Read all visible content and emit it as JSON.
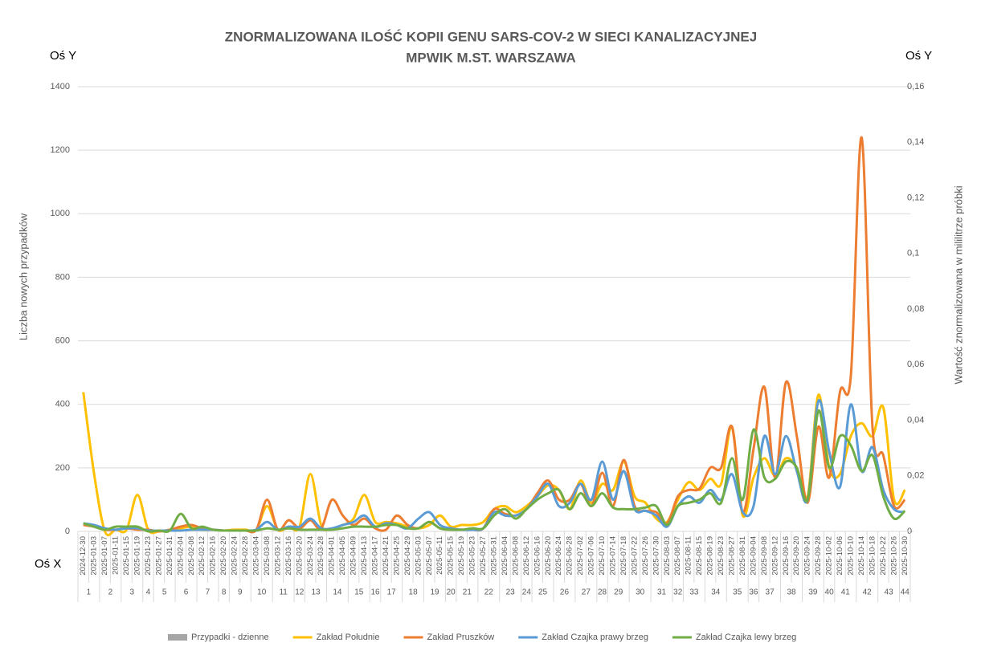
{
  "chart_data": {
    "type": "line",
    "title": [
      "ZNORMALIZOWANA ILOŚĆ KOPII GENU SARS-COV-2 W SIECI KANALIZACYJNEJ",
      "MPWIK M.ST. WARSZAWA"
    ],
    "annotations": [
      "Oś Y",
      "Oś Y",
      "Oś X"
    ],
    "ylabel": "Liczba nowych przypadków",
    "y2label": "Wartość znormalizowana  w mililitrze próbki",
    "x": [
      "2024-12-30",
      "2025-01-03",
      "2025-01-07",
      "2025-01-11",
      "2025-01-15",
      "2025-01-19",
      "2025-01-23",
      "2025-01-27",
      "2025-01-31",
      "2025-02-04",
      "2025-02-08",
      "2025-02-12",
      "2025-02-16",
      "2025-02-20",
      "2025-02-24",
      "2025-02-28",
      "2025-03-04",
      "2025-03-08",
      "2025-03-12",
      "2025-03-16",
      "2025-03-20",
      "2025-03-24",
      "2025-03-28",
      "2025-04-01",
      "2025-04-05",
      "2025-04-09",
      "2025-04-13",
      "2025-04-17",
      "2025-04-21",
      "2025-04-25",
      "2025-04-29",
      "2025-05-03",
      "2025-05-07",
      "2025-05-11",
      "2025-05-15",
      "2025-05-19",
      "2025-05-23",
      "2025-05-27",
      "2025-05-31",
      "2025-06-04",
      "2025-06-08",
      "2025-06-12",
      "2025-06-16",
      "2025-06-20",
      "2025-06-24",
      "2025-06-28",
      "2025-07-02",
      "2025-07-06",
      "2025-07-10",
      "2025-07-14",
      "2025-07-18",
      "2025-07-22",
      "2025-07-26",
      "2025-07-30",
      "2025-08-03",
      "2025-08-07",
      "2025-08-11",
      "2025-08-15",
      "2025-08-19",
      "2025-08-23",
      "2025-08-27",
      "2025-08-31",
      "2025-09-04",
      "2025-09-08",
      "2025-09-12",
      "2025-09-16",
      "2025-09-20",
      "2025-09-24",
      "2025-09-28",
      "2025-10-02",
      "2025-10-06",
      "2025-10-10",
      "2025-10-14",
      "2025-10-18",
      "2025-10-22",
      "2025-10-26",
      "2025-10-30"
    ],
    "x_groups": [
      1,
      2,
      3,
      4,
      5,
      6,
      7,
      8,
      9,
      10,
      11,
      12,
      13,
      14,
      15,
      16,
      17,
      18,
      19,
      20,
      21,
      22,
      23,
      24,
      25,
      26,
      27,
      28,
      29,
      30,
      31,
      32,
      33,
      34,
      35,
      36,
      37,
      38,
      39,
      40,
      41,
      42,
      43,
      44
    ],
    "ylim": [
      0,
      1400
    ],
    "yticks": [
      0,
      200,
      400,
      600,
      800,
      1000,
      1200,
      1400
    ],
    "y2lim": [
      0,
      0.16
    ],
    "y2ticks": [
      0,
      {
        "value": 0.02,
        "label": "0,02"
      },
      {
        "value": 0.04,
        "label": "0,04"
      },
      {
        "value": 0.06,
        "label": "0,06"
      },
      {
        "value": 0.08,
        "label": "0,08"
      },
      {
        "value": 0.1,
        "label": "0,1"
      },
      {
        "value": 0.12,
        "label": "0,12"
      },
      {
        "value": 0.14,
        "label": "0,14"
      },
      {
        "value": 0.16,
        "label": "0,16"
      }
    ],
    "grid": true,
    "legend": "bottom",
    "series": [
      {
        "name": "Przypadki - dzienne",
        "color": "#a5a5a5",
        "axis": "y",
        "values": [
          null,
          null,
          null,
          null,
          null,
          null,
          null,
          null,
          null,
          null,
          null,
          null,
          null,
          null,
          null,
          null,
          null,
          null,
          null,
          null,
          null,
          null,
          null,
          null,
          null,
          null,
          null,
          null,
          null,
          null,
          null,
          null,
          null,
          null,
          null,
          null,
          null,
          null,
          null,
          null,
          null,
          null,
          null,
          null,
          null,
          null,
          null,
          null,
          null,
          null,
          null,
          null,
          null,
          null,
          null,
          null,
          null,
          null,
          null,
          null,
          null,
          null,
          null,
          null,
          null,
          null,
          null,
          null,
          null,
          null,
          null,
          null,
          null,
          null,
          null,
          null,
          null
        ]
      },
      {
        "name": "Zakład Południe",
        "color": "#ffc000",
        "axis": "y2",
        "values": [
          0.0501,
          0.0206,
          0,
          0.0006,
          0.0006,
          0.0131,
          0.0006,
          0,
          0.0006,
          0.0011,
          0.0017,
          0.0006,
          0.0006,
          0.0003,
          0.0006,
          0.0006,
          0.0006,
          0.0091,
          0.0006,
          0.0017,
          0.0017,
          0.0206,
          0.0023,
          0.0011,
          0.0023,
          0.0046,
          0.0131,
          0.0034,
          0.0034,
          0.0029,
          0.0017,
          0.0011,
          0.0023,
          0.0057,
          0.0017,
          0.0023,
          0.0023,
          0.0034,
          0.008,
          0.0091,
          0.0069,
          0.0091,
          0.0126,
          0.0166,
          0.0149,
          0.008,
          0.0183,
          0.0103,
          0.0171,
          0.0149,
          0.0251,
          0.0126,
          0.0103,
          0.0046,
          0.0034,
          0.0114,
          0.0177,
          0.0149,
          0.0189,
          0.0171,
          0.0377,
          0.0057,
          0.0194,
          0.0263,
          0.02,
          0.0263,
          0.0229,
          0.0126,
          0.0491,
          0.0229,
          0.0206,
          0.0343,
          0.0389,
          0.0343,
          0.0446,
          0.0114,
          0.0149
        ]
      },
      {
        "name": "Zakład Pruszków",
        "color": "#ed7d31",
        "axis": "y2",
        "values": [
          0.0023,
          0.0017,
          0.0006,
          0.0006,
          0.0011,
          0.0006,
          0.0006,
          0,
          0.0006,
          0.0017,
          0.0023,
          0.0011,
          0.0006,
          0.0003,
          0.0003,
          0.0003,
          0.0006,
          0.0114,
          0.0006,
          0.004,
          0.0011,
          0.004,
          0.0011,
          0.0114,
          0.0057,
          0.0023,
          0.0046,
          0.0011,
          0.0006,
          0.0057,
          0.0023,
          0.0011,
          0.0034,
          0.0011,
          0.0006,
          0.0006,
          0.0006,
          0.0011,
          0.008,
          0.0063,
          0.0057,
          0.008,
          0.0137,
          0.0183,
          0.0114,
          0.0114,
          0.0171,
          0.0091,
          0.0211,
          0.0091,
          0.0257,
          0.0091,
          0.0074,
          0.0069,
          0.0029,
          0.0126,
          0.0149,
          0.0154,
          0.0229,
          0.0229,
          0.0377,
          0.0069,
          0.0297,
          0.052,
          0.0194,
          0.0537,
          0.0343,
          0.0103,
          0.0377,
          0.0194,
          0.0503,
          0.056,
          0.1417,
          0.0377,
          0.0274,
          0.0091,
          0.0114
        ]
      },
      {
        "name": "Zakład Czajka prawy brzeg",
        "color": "#5b9bd5",
        "axis": "y2",
        "values": [
          0.0029,
          0.0023,
          0.0011,
          0.0006,
          0.0011,
          0.0011,
          0.0003,
          0.0003,
          0.0003,
          0.0003,
          0.0006,
          0.0006,
          0.0006,
          0.0003,
          0.0003,
          0.0003,
          0.0006,
          0.0034,
          0.0006,
          0.0017,
          0.0017,
          0.0046,
          0.0011,
          0.0011,
          0.0023,
          0.0034,
          0.0057,
          0.0017,
          0.0029,
          0.0023,
          0.0011,
          0.0046,
          0.0069,
          0.0023,
          0.0011,
          0.0006,
          0.0006,
          0.0011,
          0.0069,
          0.0057,
          0.0057,
          0.008,
          0.0126,
          0.0171,
          0.0091,
          0.0103,
          0.0171,
          0.0114,
          0.0251,
          0.0114,
          0.0217,
          0.008,
          0.0074,
          0.0057,
          0.0017,
          0.0091,
          0.0126,
          0.0103,
          0.0149,
          0.0114,
          0.0206,
          0.0069,
          0.0091,
          0.0343,
          0.0206,
          0.0343,
          0.0217,
          0.0114,
          0.0469,
          0.0286,
          0.016,
          0.0457,
          0.0217,
          0.0303,
          0.0149,
          0.008,
          0.0069
        ]
      },
      {
        "name": "Zakład Czajka lewy brzeg",
        "color": "#70ad47",
        "axis": "y2",
        "values": [
          0.0029,
          0.0017,
          0.0006,
          0.0017,
          0.0017,
          0.0017,
          0,
          0.0003,
          0.0003,
          0.0063,
          0.0011,
          0.0017,
          0.0006,
          0.0003,
          0.0003,
          0.0003,
          0.0003,
          0.0011,
          0.0006,
          0.0011,
          0.0006,
          0.0006,
          0.0006,
          0.0006,
          0.0011,
          0.0017,
          0.0017,
          0.0017,
          0.0023,
          0.0023,
          0.0011,
          0.0011,
          0.0034,
          0.0011,
          0.0006,
          0.0006,
          0.0011,
          0.0011,
          0.0057,
          0.008,
          0.0046,
          0.008,
          0.0114,
          0.0137,
          0.0149,
          0.008,
          0.0137,
          0.0091,
          0.0137,
          0.0086,
          0.008,
          0.008,
          0.0086,
          0.0091,
          0.0023,
          0.0091,
          0.0103,
          0.0114,
          0.0137,
          0.0103,
          0.0263,
          0.0114,
          0.0366,
          0.0194,
          0.0189,
          0.0251,
          0.0229,
          0.0114,
          0.0434,
          0.0229,
          0.0343,
          0.0309,
          0.0217,
          0.0274,
          0.0126,
          0.0046,
          0.0074
        ]
      }
    ]
  }
}
